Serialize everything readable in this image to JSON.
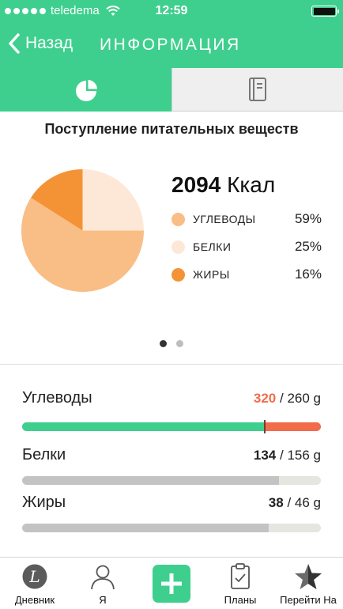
{
  "status_bar": {
    "carrier": "teledema",
    "time": "12:59",
    "wifi_icon": "wifi-icon",
    "battery_icon": "battery-icon"
  },
  "nav": {
    "back_label": "Назад",
    "title": "ИНФОРМАЦИЯ"
  },
  "tabs": [
    {
      "icon": "pie-chart-icon",
      "active": true
    },
    {
      "icon": "notebook-icon",
      "active": false
    }
  ],
  "summary": {
    "title": "Поступление питательных веществ",
    "kcal_value": "2094",
    "kcal_unit": "Ккал",
    "macros": [
      {
        "name": "УГЛЕВОДЫ",
        "percent": "59%",
        "fraction": 0.59,
        "color": "#f9be85"
      },
      {
        "name": "БЕЛКИ",
        "percent": "25%",
        "fraction": 0.25,
        "color": "#fde8d7"
      },
      {
        "name": "ЖИРЫ",
        "percent": "16%",
        "fraction": 0.16,
        "color": "#f39336"
      }
    ],
    "pager": {
      "pages": 2,
      "current": 1
    }
  },
  "nutrients": [
    {
      "name": "Углеводы",
      "current": "320",
      "goal": "/ 260 g",
      "over": true,
      "progress": 1.231
    },
    {
      "name": "Белки",
      "current": "134",
      "goal": "/ 156 g",
      "over": false,
      "progress": 0.859
    },
    {
      "name": "Жиры",
      "current": "38",
      "goal": "/ 46 g",
      "over": false,
      "progress": 0.826
    }
  ],
  "tabbar": {
    "items": [
      {
        "label": "Дневник",
        "icon": "diary-icon"
      },
      {
        "label": "Я",
        "icon": "profile-icon"
      },
      {
        "label": "",
        "icon": "plus-icon"
      },
      {
        "label": "Планы",
        "icon": "clipboard-icon"
      },
      {
        "label": "Перейти На",
        "icon": "star-icon"
      }
    ]
  },
  "colors": {
    "accent": "#3ecf8e",
    "over": "#f26b4b",
    "bar_fill": "#c3c3c3",
    "bar_track": "#e6e6e0"
  }
}
